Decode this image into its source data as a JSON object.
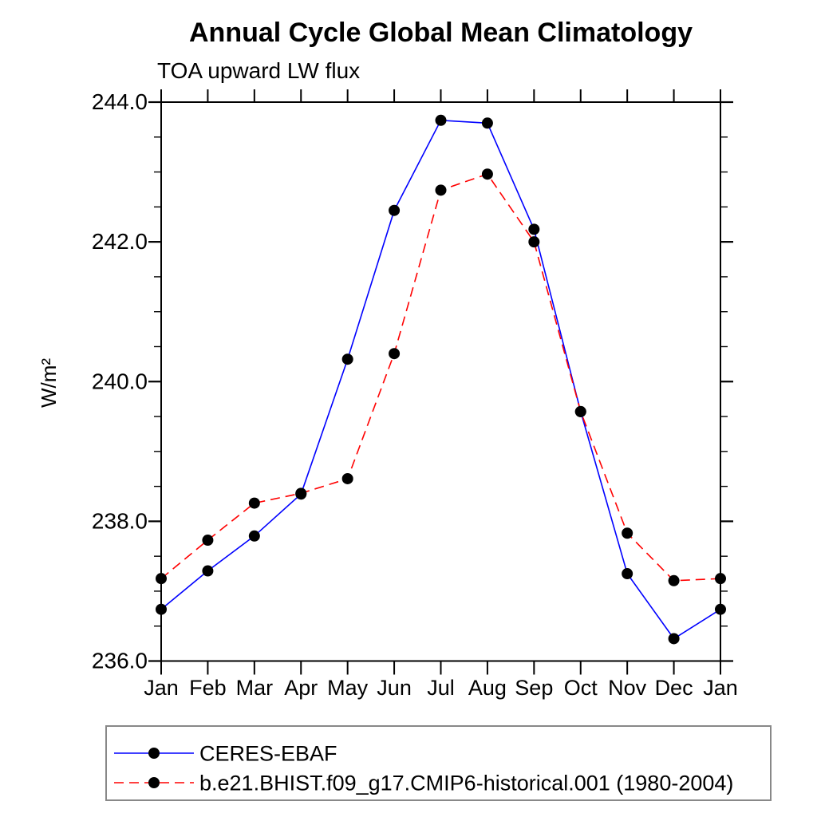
{
  "chart_data": {
    "type": "line",
    "title": "Annual Cycle Global Mean Climatology",
    "subtitle": "TOA upward LW flux",
    "ylabel": "W/m²",
    "xlabel": "",
    "categories": [
      "Jan",
      "Feb",
      "Mar",
      "Apr",
      "May",
      "Jun",
      "Jul",
      "Aug",
      "Sep",
      "Oct",
      "Nov",
      "Dec",
      "Jan"
    ],
    "y_tick_labels": [
      "236.0",
      "238.0",
      "240.0",
      "242.0",
      "244.0"
    ],
    "ylim": [
      236.0,
      244.0
    ],
    "y_major_step": 2.0,
    "y_minor_step": 0.5,
    "grid": false,
    "legend_position": "bottom-left",
    "axis_color": "#000000",
    "marker_color": "#000000",
    "series": [
      {
        "name": "CERES-EBAF",
        "color": "#0000ff",
        "line_style": "solid",
        "values": [
          236.74,
          237.29,
          237.79,
          238.39,
          240.32,
          242.45,
          243.74,
          243.7,
          242.18,
          239.57,
          237.25,
          236.32,
          236.74
        ]
      },
      {
        "name": "b.e21.BHIST.f09_g17.CMIP6-historical.001 (1980-2004)",
        "color": "#ff0000",
        "line_style": "dashed",
        "values": [
          237.18,
          237.73,
          238.26,
          238.4,
          238.61,
          240.4,
          242.74,
          242.97,
          242.0,
          239.57,
          237.83,
          237.15,
          237.18
        ]
      }
    ]
  }
}
